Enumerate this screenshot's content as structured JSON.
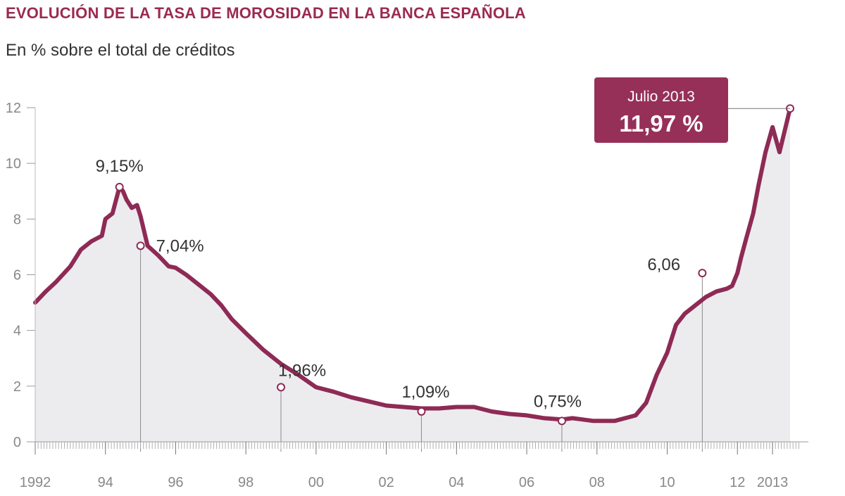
{
  "header": {
    "title": "EVOLUCIÓN DE LA TASA DE MOROSIDAD EN LA BANCA ESPAÑOLA",
    "subtitle": "En % sobre el total de créditos"
  },
  "colors": {
    "line": "#8e2a55",
    "area": "#ececee",
    "callout_bg": "#963058"
  },
  "callout": {
    "line1": "Julio 2013",
    "line2": "11,97 %"
  },
  "chart_data": {
    "type": "area",
    "title": "EVOLUCIÓN DE LA TASA DE MOROSIDAD EN LA BANCA ESPAÑOLA",
    "subtitle": "En % sobre el total de créditos",
    "xlabel": "",
    "ylabel": "",
    "xlim": [
      1992,
      2013.5
    ],
    "ylim": [
      0,
      12
    ],
    "grid": false,
    "y_ticks": [
      "0",
      "2",
      "4",
      "6",
      "8",
      "10",
      "12"
    ],
    "x_ticks": [
      {
        "x": 1992,
        "label": "1992"
      },
      {
        "x": 1994,
        "label": "94"
      },
      {
        "x": 1996,
        "label": "96"
      },
      {
        "x": 1998,
        "label": "98"
      },
      {
        "x": 2000,
        "label": "00"
      },
      {
        "x": 2002,
        "label": "02"
      },
      {
        "x": 2004,
        "label": "04"
      },
      {
        "x": 2006,
        "label": "06"
      },
      {
        "x": 2008,
        "label": "08"
      },
      {
        "x": 2010,
        "label": "10"
      },
      {
        "x": 2012,
        "label": "12"
      },
      {
        "x": 2013,
        "label": "2013"
      }
    ],
    "series": [
      {
        "x": [
          1992.0,
          1992.3,
          1992.6,
          1993.0,
          1993.3,
          1993.6,
          1993.9,
          1994.0,
          1994.2,
          1994.4,
          1994.5,
          1994.6,
          1994.75,
          1994.9,
          1995.0,
          1995.2,
          1995.5,
          1995.8,
          1996.0,
          1996.3,
          1996.6,
          1997.0,
          1997.3,
          1997.6,
          1998.0,
          1998.5,
          1999.0,
          1999.5,
          2000.0,
          2000.5,
          2001.0,
          2001.5,
          2002.0,
          2002.5,
          2003.0,
          2003.5,
          2004.0,
          2004.5,
          2005.0,
          2005.5,
          2006.0,
          2006.5,
          2007.0,
          2007.3,
          2007.6,
          2007.9,
          2008.2,
          2008.5,
          2008.8,
          2009.1,
          2009.4,
          2009.7,
          2010.0,
          2010.25,
          2010.5,
          2010.8,
          2011.1,
          2011.4,
          2011.7,
          2011.85,
          2012.0,
          2012.1,
          2012.25,
          2012.45,
          2012.6,
          2012.8,
          2013.0,
          2013.2,
          2013.5
        ],
        "values": [
          5.0,
          5.4,
          5.75,
          6.3,
          6.9,
          7.2,
          7.4,
          8.0,
          8.2,
          9.15,
          9.0,
          8.7,
          8.4,
          8.5,
          8.1,
          7.04,
          6.7,
          6.3,
          6.25,
          6.0,
          5.7,
          5.3,
          4.9,
          4.4,
          3.9,
          3.3,
          2.8,
          2.4,
          1.96,
          1.8,
          1.6,
          1.45,
          1.3,
          1.25,
          1.2,
          1.2,
          1.25,
          1.25,
          1.09,
          1.0,
          0.95,
          0.85,
          0.8,
          0.85,
          0.8,
          0.75,
          0.75,
          0.75,
          0.85,
          0.95,
          1.4,
          2.4,
          3.2,
          4.2,
          4.6,
          4.9,
          5.2,
          5.4,
          5.5,
          5.6,
          6.06,
          6.6,
          7.3,
          8.2,
          9.2,
          10.4,
          11.3,
          10.4,
          11.97
        ]
      }
    ],
    "annotations": [
      {
        "x": 1994.4,
        "y": 9.15,
        "label": "9,15%",
        "dy": -22
      },
      {
        "x": 1995.0,
        "y": 7.04,
        "label": "7,04%",
        "dx": 22,
        "dy": 8,
        "anchor": "start",
        "drop": true
      },
      {
        "x": 1999.0,
        "y": 1.96,
        "label": "1,96%",
        "dx": -4,
        "dy": -16,
        "anchor": "start",
        "drop": true
      },
      {
        "x": 2003.0,
        "y": 1.09,
        "label": "1,09%",
        "dx": -28,
        "dy": -20,
        "anchor": "start",
        "drop": true
      },
      {
        "x": 2007.0,
        "y": 0.75,
        "label": "0,75%",
        "dx": -40,
        "dy": -20,
        "anchor": "start",
        "drop": true
      },
      {
        "x": 2011.0,
        "y": 6.06,
        "label": "6,06",
        "dx": -78,
        "dy": -4,
        "anchor": "start",
        "drop": true
      },
      {
        "x": 2013.5,
        "y": 11.97,
        "label": "",
        "drop": false
      }
    ]
  }
}
